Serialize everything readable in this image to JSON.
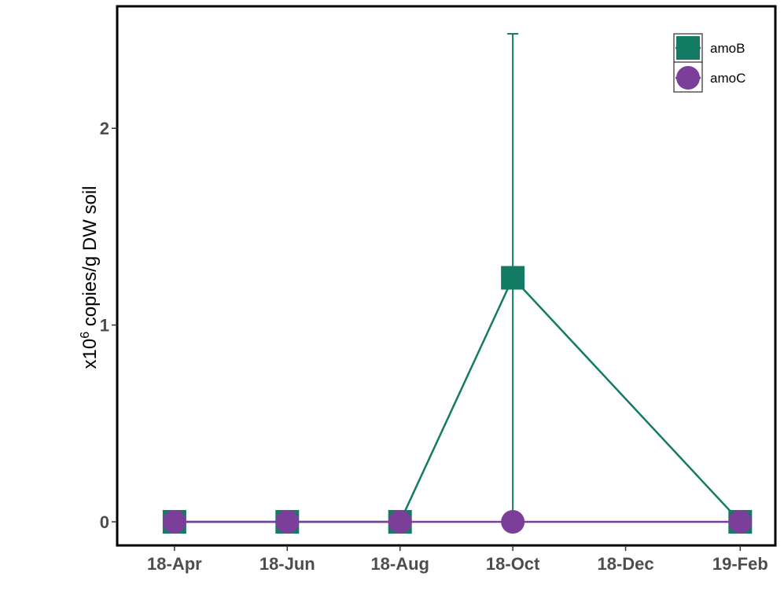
{
  "chart_data": {
    "type": "line",
    "x_dates": [
      "2018-04-01",
      "2018-06-01",
      "2018-08-01",
      "2018-10-01",
      "2019-02-01"
    ],
    "x_ticks": [
      {
        "date": "2018-04-01",
        "label": "18-Apr"
      },
      {
        "date": "2018-06-01",
        "label": "18-Jun"
      },
      {
        "date": "2018-08-01",
        "label": "18-Aug"
      },
      {
        "date": "2018-10-01",
        "label": "18-Oct"
      },
      {
        "date": "2018-12-01",
        "label": "18-Dec"
      },
      {
        "date": "2019-02-01",
        "label": "19-Feb"
      }
    ],
    "y_ticks": [
      0,
      1,
      2
    ],
    "ylabel_prefix": "x10",
    "ylabel_exponent": "6",
    "ylabel_suffix": " copies/g DW soil",
    "xlim": [
      "2018-03-01",
      "2019-02-20"
    ],
    "ylim": [
      -0.12,
      2.62
    ],
    "grid": false,
    "legend_position": "top-right",
    "series": [
      {
        "name": "amoB",
        "marker": "square",
        "color": "#137a63",
        "values": [
          0,
          0,
          0,
          1.24,
          0
        ],
        "error": [
          0,
          0,
          0,
          1.24,
          0
        ]
      },
      {
        "name": "amoC",
        "marker": "circle",
        "color": "#7b3f99",
        "values": [
          0,
          0,
          0,
          0,
          0
        ],
        "error": [
          0,
          0,
          0,
          0,
          0
        ]
      }
    ]
  }
}
